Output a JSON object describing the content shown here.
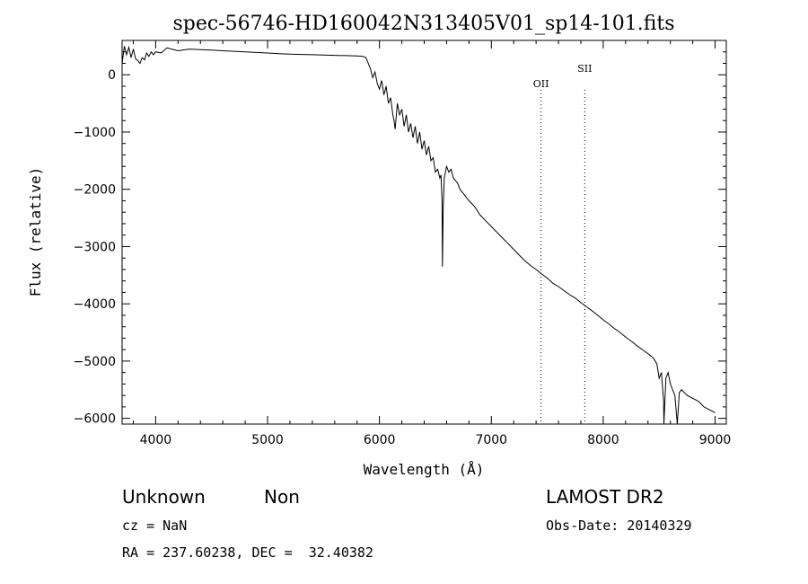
{
  "chart_data": {
    "type": "line",
    "title": "spec-56746-HD160042N313405V01_sp14-101.fits",
    "xlabel": "Wavelength (Å)",
    "ylabel": "Flux (relative)",
    "xlim": [
      3700,
      9100
    ],
    "ylim": [
      -6100,
      600
    ],
    "xticks": [
      4000,
      5000,
      6000,
      7000,
      8000,
      9000
    ],
    "yticks": [
      0,
      -1000,
      -2000,
      -3000,
      -4000,
      -5000,
      -6000
    ],
    "grid": false,
    "series": [
      {
        "x": [
          3700,
          3720,
          3740,
          3760,
          3780,
          3800,
          3820,
          3840,
          3860,
          3880,
          3900,
          3920,
          3940,
          3960,
          3980,
          4000,
          4050,
          4100,
          4200,
          4300,
          4400,
          4500,
          4600,
          4700,
          4800,
          4900,
          5000,
          5100,
          5200,
          5300,
          5400,
          5500,
          5600,
          5700,
          5800,
          5850,
          5880,
          5900,
          5920,
          5940,
          5960,
          5980,
          6000,
          6020,
          6040,
          6060,
          6080,
          6100,
          6120,
          6130,
          6140,
          6160,
          6180,
          6200,
          6220,
          6240,
          6260,
          6280,
          6300,
          6320,
          6340,
          6360,
          6380,
          6400,
          6420,
          6440,
          6460,
          6480,
          6500,
          6520,
          6540,
          6550,
          6560,
          6563,
          6570,
          6580,
          6600,
          6620,
          6640,
          6660,
          6680,
          6700,
          6720,
          6740,
          6760,
          6780,
          6800,
          6850,
          6900,
          6950,
          7000,
          7050,
          7100,
          7150,
          7200,
          7250,
          7300,
          7350,
          7400,
          7450,
          7500,
          7550,
          7600,
          7650,
          7700,
          7750,
          7800,
          7850,
          7900,
          7950,
          8000,
          8050,
          8100,
          8150,
          8200,
          8250,
          8300,
          8350,
          8400,
          8450,
          8480,
          8500,
          8520,
          8540,
          8542,
          8560,
          8580,
          8600,
          8620,
          8640,
          8662,
          8680,
          8700,
          8750,
          8800,
          8850,
          8900,
          8950,
          9000
        ],
        "y": [
          200,
          500,
          350,
          480,
          300,
          450,
          280,
          250,
          200,
          300,
          260,
          380,
          320,
          400,
          350,
          400,
          380,
          470,
          420,
          450,
          440,
          430,
          420,
          410,
          400,
          390,
          380,
          370,
          360,
          355,
          350,
          345,
          340,
          335,
          330,
          320,
          300,
          200,
          100,
          -50,
          50,
          -150,
          -250,
          -100,
          -350,
          -200,
          -500,
          -400,
          -700,
          -800,
          -950,
          -500,
          -700,
          -600,
          -900,
          -700,
          -1000,
          -850,
          -1100,
          -900,
          -1200,
          -1000,
          -1300,
          -1150,
          -1400,
          -1250,
          -1500,
          -1450,
          -1700,
          -1650,
          -1800,
          -1750,
          -2200,
          -3350,
          -2300,
          -1800,
          -1600,
          -1700,
          -1650,
          -1800,
          -1850,
          -1900,
          -2000,
          -2050,
          -2100,
          -2150,
          -2200,
          -2300,
          -2450,
          -2550,
          -2650,
          -2750,
          -2850,
          -2950,
          -3050,
          -3150,
          -3250,
          -3330,
          -3400,
          -3480,
          -3550,
          -3640,
          -3700,
          -3770,
          -3840,
          -3900,
          -3980,
          -4050,
          -4120,
          -4200,
          -4280,
          -4350,
          -4430,
          -4500,
          -4580,
          -4650,
          -4730,
          -4800,
          -4870,
          -4950,
          -5050,
          -5300,
          -5200,
          -5700,
          -6100,
          -5300,
          -5200,
          -5400,
          -5500,
          -5600,
          -6100,
          -5550,
          -5500,
          -5600,
          -5650,
          -5700,
          -5800,
          -5850,
          -5900
        ]
      }
    ],
    "lines": [
      {
        "label": "OII",
        "x": 7444
      },
      {
        "label": "SII",
        "x": 7835
      }
    ]
  },
  "info": {
    "class": "Unknown",
    "subclass": "Non",
    "survey": "LAMOST DR2",
    "cz": "cz = NaN",
    "obsdate": "Obs-Date: 20140329",
    "coords": "RA = 237.60238, DEC =  32.40382"
  }
}
